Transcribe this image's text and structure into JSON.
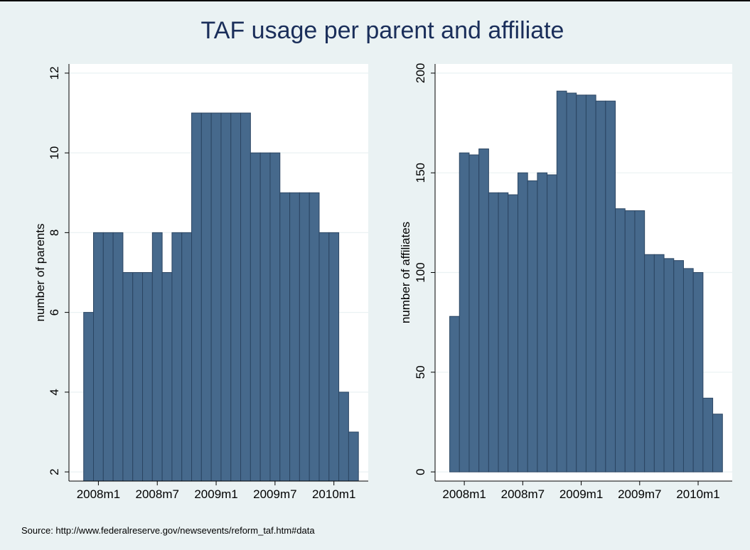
{
  "title": "TAF usage per parent and affiliate",
  "note": "Source: http://www.federalreserve.gov/newsevents/reform_taf.htm#data",
  "chart_data": [
    {
      "type": "bar",
      "ylabel": "number of parents",
      "color": "#46698c",
      "grid": true,
      "x": [
        575,
        576,
        577,
        578,
        579,
        580,
        581,
        582,
        583,
        584,
        585,
        586,
        587,
        588,
        589,
        590,
        591,
        592,
        593,
        594,
        595,
        596,
        597,
        598,
        599,
        600,
        601,
        602
      ],
      "values": [
        6,
        8,
        8,
        8,
        7,
        7,
        7,
        8,
        7,
        8,
        8,
        11,
        11,
        11,
        11,
        11,
        11,
        10,
        10,
        10,
        9,
        9,
        9,
        9,
        8,
        8,
        4,
        3
      ],
      "xlim": [
        573,
        603.5
      ],
      "ylim": [
        1.77,
        12.23
      ],
      "yticks": [
        2,
        4,
        6,
        8,
        10,
        12
      ],
      "xticks": [
        {
          "value": 576,
          "label": "2008m1"
        },
        {
          "value": 582,
          "label": "2008m7"
        },
        {
          "value": 588,
          "label": "2009m1"
        },
        {
          "value": 594,
          "label": "2009m7"
        },
        {
          "value": 600,
          "label": "2010m1"
        }
      ]
    },
    {
      "type": "bar",
      "ylabel": "number of affiliates",
      "color": "#46698c",
      "grid": true,
      "x": [
        575,
        576,
        577,
        578,
        579,
        580,
        581,
        582,
        583,
        584,
        585,
        586,
        587,
        588,
        589,
        590,
        591,
        592,
        593,
        594,
        595,
        596,
        597,
        598,
        599,
        600,
        601,
        602
      ],
      "values": [
        78,
        160,
        159,
        162,
        140,
        140,
        139,
        150,
        146,
        150,
        149,
        191,
        190,
        189,
        189,
        186,
        186,
        132,
        131,
        131,
        109,
        109,
        107,
        106,
        102,
        100,
        37,
        29
      ],
      "xlim": [
        573,
        603.5
      ],
      "ylim": [
        -4.6,
        204.6
      ],
      "yticks": [
        0,
        50,
        100,
        150,
        200
      ],
      "xticks": [
        {
          "value": 576,
          "label": "2008m1"
        },
        {
          "value": 582,
          "label": "2008m7"
        },
        {
          "value": 588,
          "label": "2009m1"
        },
        {
          "value": 594,
          "label": "2009m7"
        },
        {
          "value": 600,
          "label": "2010m1"
        }
      ]
    }
  ]
}
